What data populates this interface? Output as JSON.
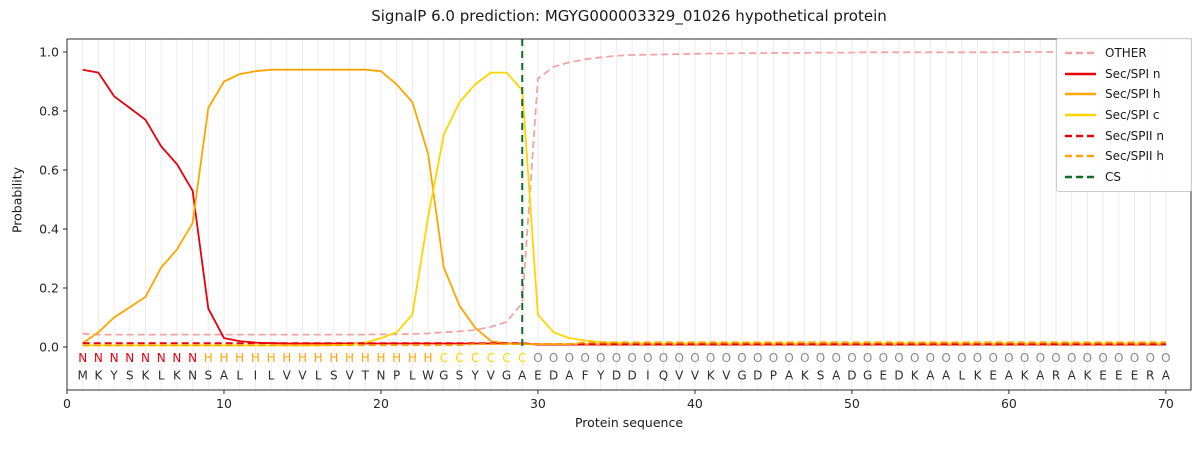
{
  "title": "SignalP 6.0 prediction: MGYG000003329_01026 hypothetical protein",
  "axes": {
    "ylabel": "Probability",
    "xlabel": "Protein sequence",
    "yticks": [
      "0.0",
      "0.2",
      "0.4",
      "0.6",
      "0.8",
      "1.0"
    ],
    "xticks": [
      "0",
      "10",
      "20",
      "30",
      "40",
      "50",
      "60",
      "70"
    ]
  },
  "legend": {
    "entries": [
      {
        "label": "OTHER",
        "color": "#f4a3a3",
        "style": "dashed"
      },
      {
        "label": "Sec/SPI n",
        "color": "#e8000b",
        "style": "solid"
      },
      {
        "label": "Sec/SPI h",
        "color": "#ffa500",
        "style": "solid"
      },
      {
        "label": "Sec/SPI c",
        "color": "#ffd500",
        "style": "solid"
      },
      {
        "label": "Sec/SPII n",
        "color": "#e8000b",
        "style": "dashed"
      },
      {
        "label": "Sec/SPII h",
        "color": "#ffa500",
        "style": "dashed"
      },
      {
        "label": "CS",
        "color": "#0a7022",
        "style": "dashed"
      }
    ]
  },
  "sequence": {
    "residues": "MKYSKLKNSALILVVLSVTNPLWGSYVGAEDAFYDDIQVVKVGDPAKSADGEDKAALKEAKARAKEEERA",
    "regions": "NNNNNNNNHHHHHHHHHHHHHHHCCCCCCOOOOOOOOOOOOOOOOOOOOOOOOOOOOOOOOOOOOOOOOO",
    "region_colors": {
      "N": "#e8000b",
      "H": "#ffa500",
      "C": "#ffd500",
      "O": "#8a8a8a"
    },
    "residue_color": "#2e2e2e"
  },
  "chart_data": {
    "type": "line",
    "title": "SignalP 6.0 prediction: MGYG000003329_01026 hypothetical protein",
    "xlabel": "Protein sequence",
    "ylabel": "Probability",
    "xlim": [
      0,
      71.6
    ],
    "ylim": [
      -0.146,
      1.044
    ],
    "grid": "vertical-per-residue",
    "legend_position": "upper right",
    "cs_position": 29,
    "x": [
      1,
      2,
      3,
      4,
      5,
      6,
      7,
      8,
      9,
      10,
      11,
      12,
      13,
      14,
      15,
      16,
      17,
      18,
      19,
      20,
      21,
      22,
      23,
      24,
      25,
      26,
      27,
      28,
      29,
      30,
      31,
      32,
      33,
      34,
      35,
      36,
      37,
      38,
      39,
      40,
      41,
      42,
      43,
      44,
      45,
      46,
      47,
      48,
      49,
      50,
      51,
      52,
      53,
      54,
      55,
      56,
      57,
      58,
      59,
      60,
      61,
      62,
      63,
      64,
      65,
      66,
      67,
      68,
      69,
      70
    ],
    "series": [
      {
        "name": "OTHER",
        "color": "#f4a3a3",
        "dash": true,
        "values": [
          0.045,
          0.042,
          0.042,
          0.042,
          0.042,
          0.042,
          0.042,
          0.042,
          0.042,
          0.042,
          0.042,
          0.042,
          0.042,
          0.042,
          0.042,
          0.042,
          0.042,
          0.042,
          0.042,
          0.043,
          0.043,
          0.044,
          0.046,
          0.05,
          0.053,
          0.058,
          0.068,
          0.085,
          0.15,
          0.91,
          0.95,
          0.965,
          0.975,
          0.982,
          0.987,
          0.99,
          0.991,
          0.992,
          0.993,
          0.994,
          0.995,
          0.995,
          0.996,
          0.996,
          0.997,
          0.997,
          0.997,
          0.998,
          0.998,
          0.998,
          0.999,
          0.999,
          0.999,
          0.999,
          0.999,
          0.999,
          0.999,
          0.999,
          0.999,
          0.999,
          1.0,
          1.0,
          1.0,
          1.0,
          1.0,
          1.0,
          1.0,
          1.0,
          1.0,
          1.0
        ]
      },
      {
        "name": "Sec/SPI n",
        "color": "#e8000b",
        "dash": false,
        "values": [
          0.94,
          0.93,
          0.85,
          0.81,
          0.77,
          0.68,
          0.62,
          0.53,
          0.13,
          0.03,
          0.02,
          0.015,
          0.013,
          0.012,
          0.012,
          0.012,
          0.012,
          0.012,
          0.012,
          0.012,
          0.012,
          0.012,
          0.012,
          0.012,
          0.012,
          0.012,
          0.012,
          0.012,
          0.012,
          0.008,
          0.008,
          0.008,
          0.008,
          0.008,
          0.008,
          0.008,
          0.008,
          0.008,
          0.008,
          0.008,
          0.008,
          0.008,
          0.008,
          0.008,
          0.008,
          0.008,
          0.008,
          0.008,
          0.008,
          0.008,
          0.008,
          0.008,
          0.008,
          0.008,
          0.008,
          0.008,
          0.008,
          0.008,
          0.008,
          0.008,
          0.008,
          0.008,
          0.008,
          0.008,
          0.008,
          0.008,
          0.008,
          0.008,
          0.008,
          0.008
        ]
      },
      {
        "name": "Sec/SPI h",
        "color": "#ffa500",
        "dash": false,
        "values": [
          0.013,
          0.05,
          0.1,
          0.135,
          0.17,
          0.27,
          0.33,
          0.42,
          0.81,
          0.9,
          0.925,
          0.935,
          0.94,
          0.94,
          0.94,
          0.94,
          0.94,
          0.94,
          0.94,
          0.935,
          0.89,
          0.83,
          0.655,
          0.27,
          0.14,
          0.065,
          0.02,
          0.012,
          0.01,
          0.01,
          0.01,
          0.01,
          0.01,
          0.01,
          0.01,
          0.01,
          0.01,
          0.01,
          0.01,
          0.01,
          0.01,
          0.01,
          0.01,
          0.01,
          0.01,
          0.01,
          0.01,
          0.01,
          0.01,
          0.01,
          0.01,
          0.01,
          0.01,
          0.01,
          0.01,
          0.01,
          0.01,
          0.01,
          0.01,
          0.01,
          0.01,
          0.01,
          0.01,
          0.01,
          0.01,
          0.01,
          0.01,
          0.01,
          0.01,
          0.01
        ]
      },
      {
        "name": "Sec/SPI c",
        "color": "#ffd500",
        "dash": false,
        "values": [
          0.005,
          0.005,
          0.005,
          0.005,
          0.005,
          0.005,
          0.005,
          0.005,
          0.005,
          0.005,
          0.005,
          0.005,
          0.005,
          0.005,
          0.005,
          0.005,
          0.006,
          0.008,
          0.015,
          0.03,
          0.05,
          0.11,
          0.44,
          0.72,
          0.83,
          0.89,
          0.93,
          0.93,
          0.87,
          0.11,
          0.05,
          0.03,
          0.022,
          0.017,
          0.014,
          0.012,
          0.012,
          0.012,
          0.012,
          0.012,
          0.012,
          0.012,
          0.012,
          0.012,
          0.012,
          0.012,
          0.012,
          0.012,
          0.012,
          0.012,
          0.012,
          0.012,
          0.012,
          0.012,
          0.012,
          0.012,
          0.012,
          0.012,
          0.012,
          0.012,
          0.012,
          0.012,
          0.012,
          0.012,
          0.012,
          0.012,
          0.012,
          0.012,
          0.012,
          0.012
        ]
      },
      {
        "name": "Sec/SPII n",
        "color": "#e8000b",
        "dash": true,
        "values": [
          0.013,
          0.013,
          0.013,
          0.013,
          0.013,
          0.013,
          0.013,
          0.013,
          0.013,
          0.013,
          0.013,
          0.013,
          0.013,
          0.013,
          0.013,
          0.013,
          0.013,
          0.013,
          0.013,
          0.013,
          0.013,
          0.013,
          0.013,
          0.013,
          0.013,
          0.013,
          0.013,
          0.013,
          0.013,
          0.01,
          0.01,
          0.01,
          0.01,
          0.01,
          0.01,
          0.01,
          0.01,
          0.01,
          0.01,
          0.01,
          0.01,
          0.01,
          0.01,
          0.01,
          0.01,
          0.01,
          0.01,
          0.01,
          0.01,
          0.01,
          0.01,
          0.01,
          0.01,
          0.01,
          0.01,
          0.01,
          0.01,
          0.01,
          0.01,
          0.01,
          0.01,
          0.01,
          0.01,
          0.01,
          0.01,
          0.01,
          0.01,
          0.01,
          0.01,
          0.01
        ]
      },
      {
        "name": "Sec/SPII h",
        "color": "#ffa500",
        "dash": true,
        "values": [
          0.006,
          0.006,
          0.006,
          0.006,
          0.006,
          0.006,
          0.006,
          0.006,
          0.006,
          0.006,
          0.006,
          0.006,
          0.006,
          0.006,
          0.006,
          0.006,
          0.006,
          0.006,
          0.006,
          0.006,
          0.006,
          0.006,
          0.006,
          0.006,
          0.006,
          0.01,
          0.01,
          0.01,
          0.01,
          0.01,
          0.01,
          0.01,
          0.016,
          0.016,
          0.016,
          0.016,
          0.016,
          0.016,
          0.016,
          0.016,
          0.016,
          0.016,
          0.016,
          0.016,
          0.016,
          0.016,
          0.016,
          0.016,
          0.016,
          0.016,
          0.016,
          0.016,
          0.016,
          0.016,
          0.016,
          0.016,
          0.016,
          0.016,
          0.016,
          0.016,
          0.016,
          0.016,
          0.016,
          0.016,
          0.016,
          0.016,
          0.016,
          0.016,
          0.016,
          0.016
        ]
      }
    ],
    "cs_color": "#0a7022"
  }
}
